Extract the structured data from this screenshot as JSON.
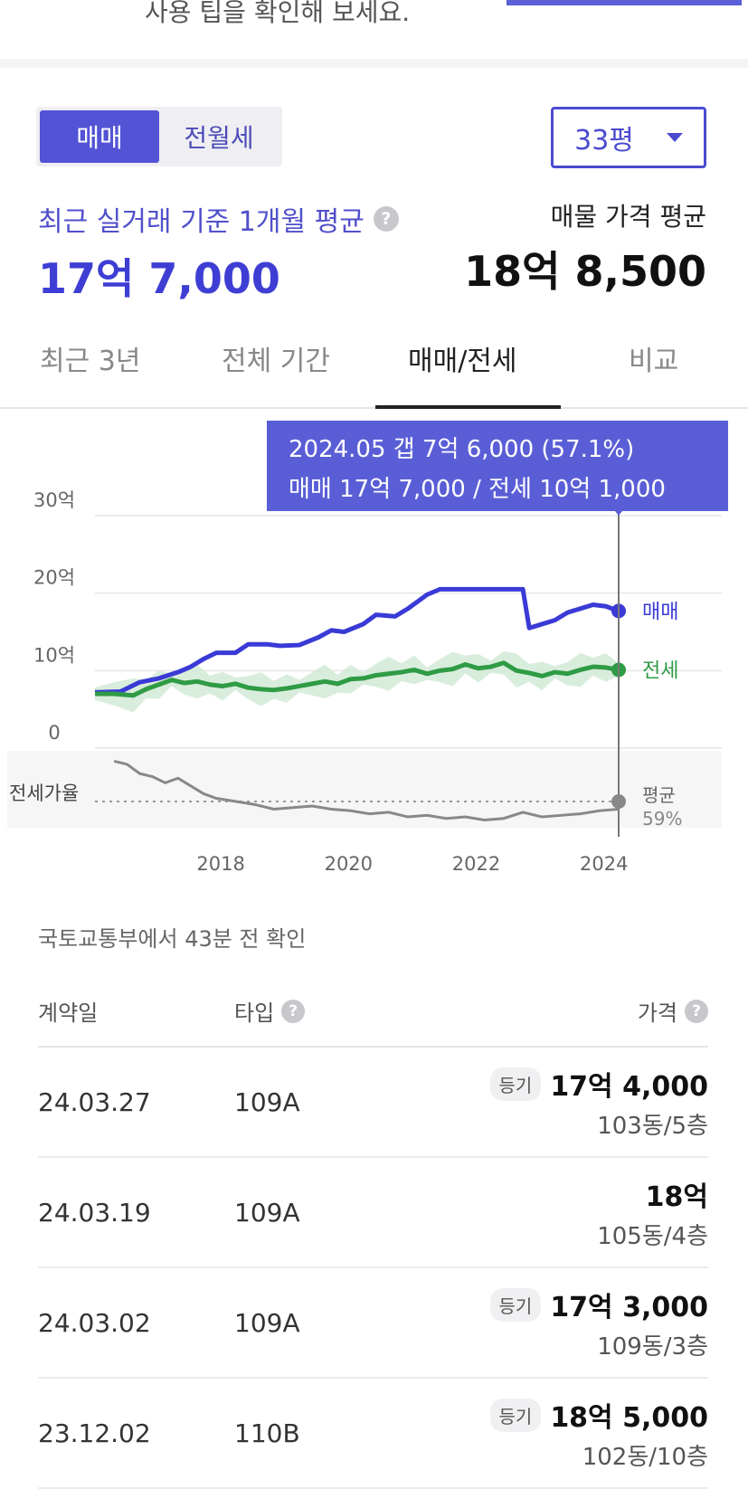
{
  "top_cut_text": "사용 팁을 확인해 보세요.",
  "deal_toggle": {
    "sale": "매매",
    "rent": "전월세",
    "active": "sale"
  },
  "area_select": {
    "value": "33평"
  },
  "recent_avg": {
    "label": "최근 실거래 기준 1개월 평균",
    "value": "17억 7,000"
  },
  "listing_avg": {
    "label": "매물 가격 평균",
    "value": "18억 8,500"
  },
  "tabs": [
    {
      "label": "최근 3년"
    },
    {
      "label": "전체 기간"
    },
    {
      "label": "매매/전세"
    },
    {
      "label": "비교"
    }
  ],
  "active_tab": 2,
  "tooltip": {
    "line1": "2024.05  갭 7억 6,000 (57.1%)",
    "line2": "매매 17억 7,000 / 전세 10억 1,000"
  },
  "chart_data": {
    "type": "line",
    "y_tick_labels": [
      "30억",
      "20억",
      "10억",
      "0"
    ],
    "ylim": [
      0,
      30
    ],
    "x_tick_labels": [
      "2018",
      "2020",
      "2022",
      "2024"
    ],
    "xlim": [
      2016.2,
      2024.4
    ],
    "series": [
      {
        "name": "매매",
        "color": "#3a3ad6",
        "x": [
          2016.2,
          2016.6,
          2016.9,
          2017.2,
          2017.5,
          2017.7,
          2017.9,
          2018.1,
          2018.4,
          2018.6,
          2018.9,
          2019.1,
          2019.4,
          2019.7,
          2019.9,
          2020.1,
          2020.4,
          2020.6,
          2020.9,
          2021.1,
          2021.4,
          2021.6,
          2021.9,
          2022.1,
          2022.4,
          2022.6,
          2022.9,
          2023.0,
          2023.2,
          2023.4,
          2023.6,
          2023.8,
          2024.0,
          2024.2,
          2024.4
        ],
        "values": [
          7.2,
          7.3,
          8.5,
          9.0,
          9.8,
          10.5,
          11.5,
          12.3,
          12.3,
          13.4,
          13.4,
          13.2,
          13.3,
          14.3,
          15.2,
          15.0,
          16.0,
          17.2,
          17.0,
          18.0,
          19.8,
          20.5,
          20.5,
          20.5,
          20.5,
          20.5,
          20.5,
          15.5,
          16.0,
          16.5,
          17.5,
          18.0,
          18.5,
          18.3,
          17.7
        ]
      },
      {
        "name": "전세",
        "color": "#2f9b45",
        "x": [
          2016.2,
          2016.5,
          2016.8,
          2017.0,
          2017.2,
          2017.4,
          2017.6,
          2017.8,
          2018.0,
          2018.2,
          2018.4,
          2018.6,
          2018.8,
          2019.0,
          2019.2,
          2019.4,
          2019.6,
          2019.8,
          2020.0,
          2020.2,
          2020.4,
          2020.6,
          2020.8,
          2021.0,
          2021.2,
          2021.4,
          2021.6,
          2021.8,
          2022.0,
          2022.2,
          2022.4,
          2022.6,
          2022.8,
          2023.0,
          2023.2,
          2023.4,
          2023.6,
          2023.8,
          2024.0,
          2024.2,
          2024.4
        ],
        "values": [
          7.0,
          7.0,
          6.8,
          7.6,
          8.2,
          8.8,
          8.4,
          8.6,
          8.2,
          8.0,
          8.3,
          7.8,
          7.6,
          7.5,
          7.7,
          8.0,
          8.3,
          8.6,
          8.3,
          8.9,
          9.0,
          9.4,
          9.6,
          9.8,
          10.1,
          9.6,
          10.0,
          10.2,
          10.8,
          10.3,
          10.5,
          11.0,
          10.0,
          9.7,
          9.3,
          9.8,
          9.6,
          10.1,
          10.5,
          10.4,
          10.1
        ]
      }
    ],
    "ratio_series": {
      "name": "전세가율",
      "color": "#888888",
      "x": [
        2016.5,
        2016.7,
        2016.9,
        2017.1,
        2017.3,
        2017.5,
        2017.7,
        2017.9,
        2018.1,
        2018.4,
        2018.7,
        2019.0,
        2019.3,
        2019.6,
        2019.9,
        2020.2,
        2020.5,
        2020.8,
        2021.1,
        2021.4,
        2021.7,
        2022.0,
        2022.3,
        2022.6,
        2022.9,
        2023.2,
        2023.5,
        2023.8,
        2024.1,
        2024.4
      ],
      "values": [
        88,
        86,
        80,
        78,
        74,
        77,
        72,
        67,
        64,
        62,
        60,
        57,
        58,
        59,
        57,
        56,
        54,
        55,
        52,
        53,
        51,
        52,
        50,
        51,
        55,
        52,
        53,
        54,
        56,
        57
      ],
      "avg_label": "평균",
      "avg_value": "59%"
    }
  },
  "source_note": "국토교통부에서 43분 전 확인",
  "table": {
    "headers": {
      "date": "계약일",
      "type": "타입",
      "price": "가격"
    },
    "rows": [
      {
        "date": "24.03.27",
        "type": "109A",
        "badge": "등기",
        "price": "17억 4,000",
        "unit": "103동/5층"
      },
      {
        "date": "24.03.19",
        "type": "109A",
        "badge": "",
        "price": "18억",
        "unit": "105동/4층"
      },
      {
        "date": "24.03.02",
        "type": "109A",
        "badge": "등기",
        "price": "17억 3,000",
        "unit": "109동/3층"
      },
      {
        "date": "23.12.02",
        "type": "110B",
        "badge": "등기",
        "price": "18억 5,000",
        "unit": "102동/10층"
      }
    ]
  }
}
